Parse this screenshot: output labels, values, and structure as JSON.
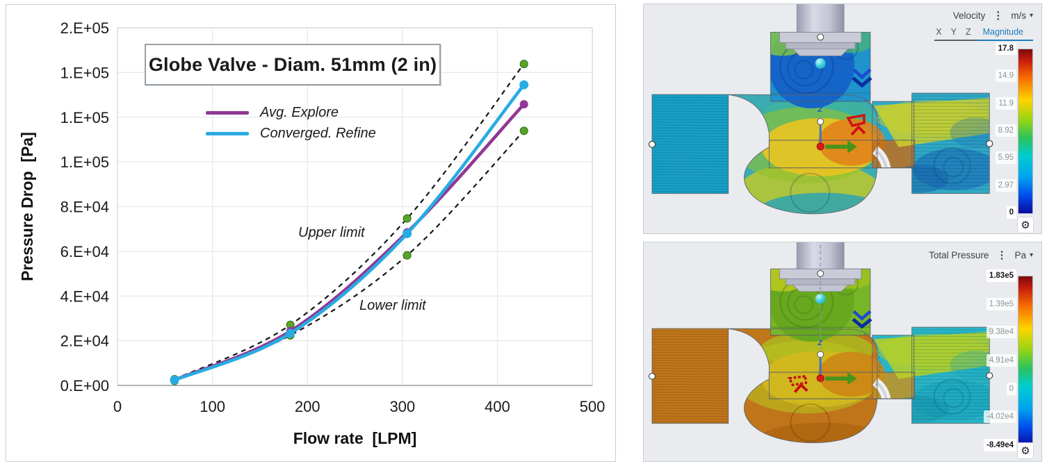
{
  "chart": {
    "title": "Globe Valve - Diam. 51mm (2 in)",
    "x_axis": {
      "label": "Flow rate  [LPM]",
      "min": 0,
      "max": 500,
      "ticks": [
        {
          "label": "0",
          "value": 0
        },
        {
          "label": "100",
          "value": 100
        },
        {
          "label": "200",
          "value": 200
        },
        {
          "label": "300",
          "value": 300
        },
        {
          "label": "400",
          "value": 400
        },
        {
          "label": "500",
          "value": 500
        }
      ]
    },
    "y_axis": {
      "label": "Pressure Drop  [Pa]",
      "min": 0,
      "max": 160000,
      "ticks": [
        {
          "label": "0.E+00",
          "value": 0
        },
        {
          "label": "2.E+04",
          "value": 20000
        },
        {
          "label": "4.E+04",
          "value": 40000
        },
        {
          "label": "6.E+04",
          "value": 60000
        },
        {
          "label": "8.E+04",
          "value": 80000
        },
        {
          "label": "1.E+05",
          "value": 100000
        },
        {
          "label": "1.E+05",
          "value": 120000
        },
        {
          "label": "1.E+05",
          "value": 140000
        },
        {
          "label": "2.E+05",
          "value": 160000
        }
      ]
    },
    "legend": [
      {
        "label": "Avg. Explore",
        "color": "#903895"
      },
      {
        "label": "Converged. Refine",
        "color": "#29abe2"
      }
    ],
    "annotations": [
      {
        "text": "Upper limit"
      },
      {
        "text": "Lower limit"
      }
    ]
  },
  "chart_data": {
    "type": "line",
    "title": "Globe Valve - Diam. 51mm (2 in)",
    "xlabel": "Flow rate [LPM]",
    "ylabel": "Pressure Drop [Pa]",
    "xlim": [
      0,
      500
    ],
    "ylim": [
      0,
      160000
    ],
    "grid": true,
    "legend_position": "top-center",
    "x": [
      60,
      182,
      305,
      428
    ],
    "series": [
      {
        "name": "Upper limit",
        "style": "dashed",
        "line_color": "#151515",
        "marker": "circle",
        "marker_color": "#58a427",
        "values": [
          2800,
          27100,
          74700,
          143800
        ]
      },
      {
        "name": "Lower limit",
        "style": "dashed",
        "line_color": "#151515",
        "marker": "circle",
        "marker_color": "#58a427",
        "values": [
          2000,
          22400,
          58200,
          113900
        ]
      },
      {
        "name": "Avg. Explore",
        "style": "solid",
        "line_color": "#903895",
        "marker": "circle",
        "marker_color": "#903895",
        "values": [
          2500,
          24300,
          68500,
          125800
        ]
      },
      {
        "name": "Converged. Refine",
        "style": "solid",
        "line_color": "#29abe2",
        "marker": "circle",
        "marker_color": "#29abe2",
        "values": [
          2400,
          23300,
          67900,
          134500
        ]
      }
    ],
    "y_tick_format": "scientific-0-decimals"
  },
  "velocity_panel": {
    "field_label": "Velocity",
    "unit": "m/s",
    "menu_icon": "⋮",
    "dropdown_icon": "▾",
    "gear_icon": "⚙",
    "tabs": [
      "X",
      "Y",
      "Z",
      "Magnitude"
    ],
    "active_tab": "Magnitude",
    "colorbar_ticks": [
      "17.8",
      "14.9",
      "11.9",
      "8.92",
      "5.95",
      "2.97",
      "0"
    ]
  },
  "pressure_panel": {
    "field_label": "Total Pressure",
    "unit": "Pa",
    "menu_icon": "⋮",
    "dropdown_icon": "▾",
    "gear_icon": "⚙",
    "colorbar_ticks": [
      "1.83e5",
      "1.39e5",
      "9.38e4",
      "4.91e4",
      "0",
      "-4.02e4",
      "-8.49e4"
    ]
  },
  "cfd_palettes": {
    "velocity": {
      "base": "#2fa8c6",
      "inlet": "#18a0c6",
      "bodyFill": "#3aacb2",
      "neck": "#3fb49c",
      "bonnetCore": "#1565c8",
      "bonnetMid": "#1e93cc",
      "bonnetTopL": "#86c93c",
      "bonnetTopR": "#4db86a",
      "jetHalo": "#93c22b",
      "jetMain": "#e7c423",
      "jetHot": "#e2801a",
      "seatRight": "#c86a14",
      "outletJet": "#ccd02a",
      "outletDark1": "#1b6fb8",
      "outletDark2": "#1560aa",
      "bulge1": "#bfc72a",
      "bulge2": "#28a2ba",
      "inletStreak": "rgba(6,60,90,0.25)",
      "bonnetSwirl": "rgba(12,45,125,0.30)",
      "outletSwirl": "rgba(0,60,90,0.25)"
    },
    "pressure": {
      "base": "#2ab4c6",
      "inlet": "#c0761b",
      "bodyFill": "#c0761b",
      "neck": "#a9bd1f",
      "bonnetCore": "#67a81f",
      "bonnetMid": "#79b528",
      "bonnetTopL": "#c2cb1d",
      "bonnetTopR": "#a7c520",
      "jetHalo": "#b8c31e",
      "jetMain": "#d3b81e",
      "jetHot": "#cd8414",
      "seatRight": "#cf9016",
      "outletJet": "#b8d024",
      "outletDark1": "#18a4bc",
      "outletDark2": "#1592ac",
      "bulge1": "#c0761b",
      "bulge2": "#ab650f",
      "inletStreak": "rgba(95,45,0,0.30)",
      "bonnetSwirl": "rgba(60,110,10,0.32)",
      "outletSwirl": "rgba(0,80,95,0.25)"
    }
  }
}
